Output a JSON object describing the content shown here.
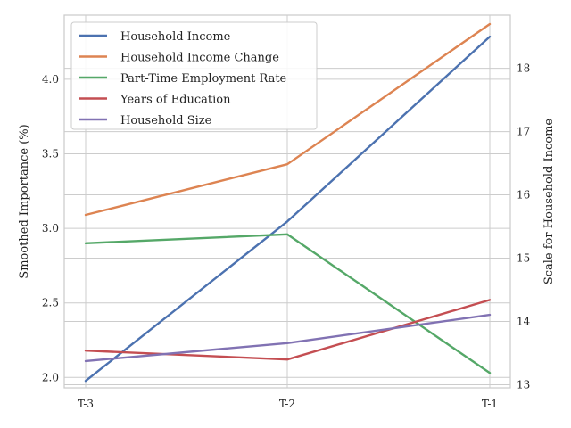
{
  "chart_data": {
    "type": "line",
    "categories": [
      "T-3",
      "T-2",
      "T-1"
    ],
    "ylabel": "Smoothed Importance (%)",
    "ylim": [
      1.93,
      4.43
    ],
    "yticks": [
      "2.0",
      "2.5",
      "3.0",
      "3.5",
      "4.0"
    ],
    "y2label": "Scale for Household Income",
    "y2lim": [
      12.95,
      18.84
    ],
    "y2ticks": [
      "13",
      "14",
      "15",
      "16",
      "17",
      "18"
    ],
    "grid": true,
    "legend_position": "upper-left",
    "series": [
      {
        "name": "Household Income",
        "axis": "right",
        "color": "#4c72b0",
        "values": [
          13.06,
          15.58,
          18.5
        ]
      },
      {
        "name": "Household Income Change",
        "axis": "left",
        "color": "#dd8452",
        "values": [
          3.09,
          3.43,
          4.37
        ]
      },
      {
        "name": "Part-Time Employment Rate",
        "axis": "left",
        "color": "#55a868",
        "values": [
          2.9,
          2.96,
          2.03
        ]
      },
      {
        "name": "Years of Education",
        "axis": "left",
        "color": "#c44e52",
        "values": [
          2.18,
          2.12,
          2.52
        ]
      },
      {
        "name": "Household Size",
        "axis": "left",
        "color": "#8172b3",
        "values": [
          2.11,
          2.23,
          2.42
        ]
      }
    ]
  }
}
